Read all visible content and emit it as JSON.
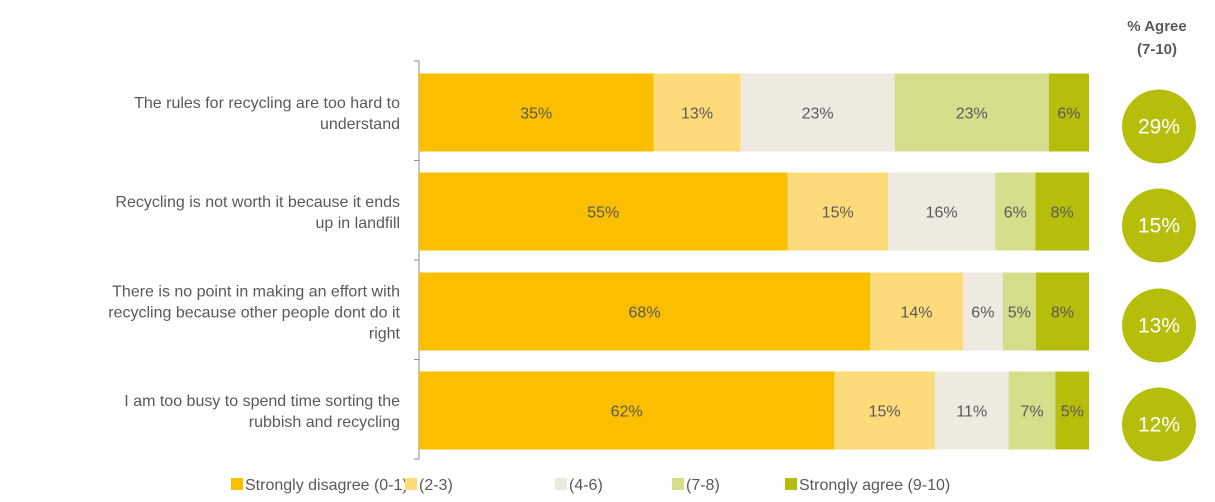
{
  "agree_header": {
    "line1": "% Agree",
    "line2": "(7-10)"
  },
  "colors": {
    "strongly_disagree": "#FBBF00",
    "d2_3": "#FDDB7A",
    "d4_6": "#EEEAE0",
    "d7_8": "#D6DE8C",
    "strongly_agree": "#B6BE0C",
    "circle": "#B6BE0C",
    "label_text": "#595959",
    "axis": "#8C8C8C"
  },
  "chart_data": {
    "type": "bar",
    "orientation": "horizontal",
    "stacked": true,
    "normalized": true,
    "categories": [
      [
        "The rules for recycling are too hard to",
        "understand"
      ],
      [
        "Recycling is not worth it because it ends",
        "up in landfill"
      ],
      [
        "There is no point in making an effort with",
        "recycling because other people dont do it",
        "right"
      ],
      [
        "I am too busy to spend time sorting the",
        "rubbish and recycling"
      ]
    ],
    "series": [
      {
        "name": "Strongly disagree (0-1)",
        "values": [
          35,
          55,
          68,
          62
        ],
        "color": "#FBBF00"
      },
      {
        "name": "(2-3)",
        "values": [
          13,
          15,
          14,
          15
        ],
        "color": "#FDDB7A"
      },
      {
        "name": "(4-6)",
        "values": [
          23,
          16,
          6,
          11
        ],
        "color": "#EEEAE0"
      },
      {
        "name": "(7-8)",
        "values": [
          23,
          6,
          5,
          7
        ],
        "color": "#D6DE8C"
      },
      {
        "name": "Strongly agree (9-10)",
        "values": [
          6,
          8,
          8,
          5
        ],
        "color": "#B6BE0C"
      }
    ],
    "agree_totals": [
      "29%",
      "15%",
      "13%",
      "12%"
    ],
    "value_suffix": "%",
    "grid": false,
    "legend_position": "bottom"
  }
}
